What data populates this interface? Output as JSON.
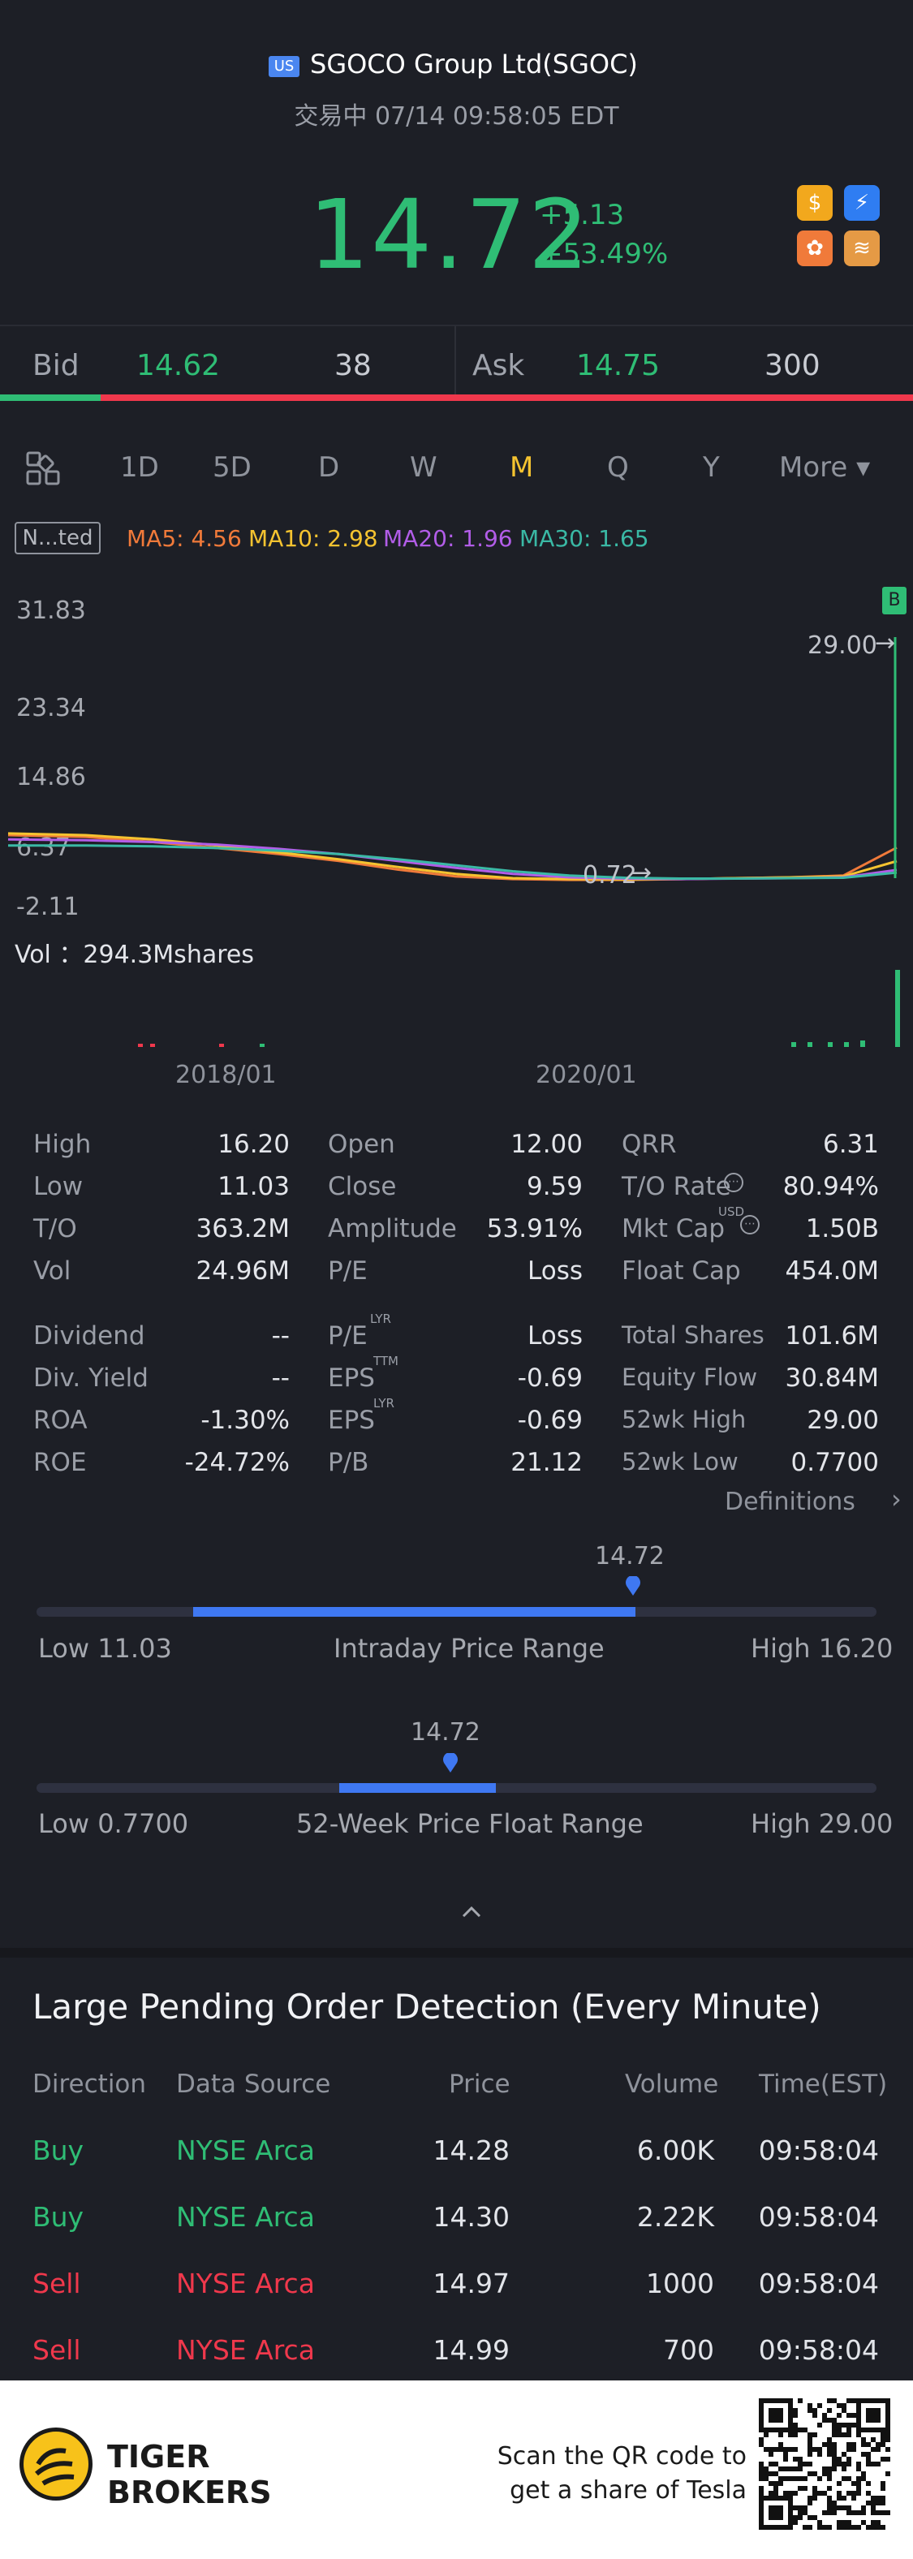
{
  "header": {
    "market_badge": "US",
    "title": "SGOCO Group Ltd(SGOC)",
    "status": "交易中 07/14 09:58:05 EDT",
    "price": "14.72",
    "change": "+5.13",
    "change_pct": "+53.49%",
    "app_icons": [
      "dollar-icon",
      "lightning-icon",
      "gift-icon",
      "layers-icon"
    ]
  },
  "bidask": {
    "bid_label": "Bid",
    "bid_price": "14.62",
    "bid_size": "38",
    "ask_label": "Ask",
    "ask_price": "14.75",
    "ask_size": "300"
  },
  "periods": {
    "items": [
      "1D",
      "5D",
      "D",
      "W",
      "M",
      "Q",
      "Y",
      "More ▾"
    ],
    "active": "M"
  },
  "chart": {
    "indicator_button": "N...ted",
    "ma": [
      "MA5: 4.56",
      "MA10: 2.98",
      "MA20: 1.96",
      "MA30: 1.65"
    ],
    "y_ticks": [
      "31.83",
      "23.34",
      "14.86",
      "6.37",
      "-2.11"
    ],
    "high_marker": "29.00",
    "low_marker": "0.72",
    "b_marker": "B",
    "volume_label": "Vol ：294.3Mshares",
    "x_ticks": [
      "2018/01",
      "2020/01"
    ],
    "colors": {
      "ma5": "#f07a3a",
      "ma10": "#f5c330",
      "ma20": "#b25de8",
      "ma30": "#3ab9a5"
    }
  },
  "chart_data": {
    "type": "line",
    "title": "",
    "ylim": [
      -2.11,
      31.83
    ],
    "series": [
      {
        "name": "MA5",
        "values": [
          6.0,
          5.8,
          5.2,
          4.5,
          3.8,
          3.0,
          2.0,
          1.2,
          0.9,
          0.8,
          0.8,
          0.9,
          1.0,
          1.1,
          1.3,
          4.56
        ]
      },
      {
        "name": "MA10",
        "values": [
          6.2,
          6.0,
          5.5,
          4.8,
          4.0,
          3.2,
          2.3,
          1.5,
          1.0,
          0.9,
          0.85,
          0.9,
          1.0,
          1.1,
          1.2,
          2.98
        ]
      },
      {
        "name": "MA20",
        "values": [
          5.5,
          5.4,
          5.2,
          4.9,
          4.4,
          3.8,
          3.0,
          2.2,
          1.5,
          1.1,
          0.95,
          0.9,
          0.95,
          1.0,
          1.1,
          1.96
        ]
      },
      {
        "name": "MA30",
        "values": [
          4.8,
          4.8,
          4.7,
          4.5,
          4.2,
          3.8,
          3.2,
          2.5,
          1.8,
          1.3,
          1.05,
          0.95,
          0.95,
          1.0,
          1.05,
          1.65
        ]
      }
    ]
  },
  "stats": {
    "rows": [
      [
        [
          "High",
          "16.20"
        ],
        [
          "Open",
          "12.00"
        ],
        [
          "QRR",
          "6.31"
        ]
      ],
      [
        [
          "Low",
          "11.03"
        ],
        [
          "Close",
          "9.59"
        ],
        [
          "T/O Rate",
          "80.94%"
        ]
      ],
      [
        [
          "T/O",
          "363.2M"
        ],
        [
          "Amplitude",
          "53.91%"
        ],
        [
          "Mkt Cap",
          "1.50B"
        ]
      ],
      [
        [
          "Vol",
          "24.96M"
        ],
        [
          "P/E",
          "Loss"
        ],
        [
          "Float Cap",
          "454.0M"
        ]
      ],
      [
        [
          "Dividend",
          "--"
        ],
        [
          "P/E",
          "Loss"
        ],
        [
          "Total Shares",
          "101.6M"
        ]
      ],
      [
        [
          "Div. Yield",
          "--"
        ],
        [
          "EPS",
          "-0.69"
        ],
        [
          "Equity Flow",
          "30.84M"
        ]
      ],
      [
        [
          "ROA",
          "-1.30%"
        ],
        [
          "EPS",
          "-0.69"
        ],
        [
          "52wk High",
          "29.00"
        ]
      ],
      [
        [
          "ROE",
          "-24.72%"
        ],
        [
          "P/B",
          "21.12"
        ],
        [
          "52wk Low",
          "0.7700"
        ]
      ]
    ],
    "sup_lyr": "LYR",
    "sup_ttm": "TTM",
    "sup_usd": "USD",
    "definitions": "Definitions"
  },
  "ranges": {
    "intraday": {
      "current": "14.72",
      "low": "Low 11.03",
      "label": "Intraday Price Range",
      "high": "High 16.20",
      "position": 0.75
    },
    "week52": {
      "current": "14.72",
      "low": "Low 0.7700",
      "label": "52-Week Price Float Range",
      "high": "High 29.00",
      "position": 0.49
    }
  },
  "pending": {
    "title": "Large Pending Order Detection (Every Minute)",
    "headers": [
      "Direction",
      "Data Source",
      "Price",
      "Volume",
      "Time(EST)"
    ],
    "rows": [
      [
        "Buy",
        "NYSE Arca",
        "14.28",
        "6.00K",
        "09:58:04"
      ],
      [
        "Buy",
        "NYSE Arca",
        "14.30",
        "2.22K",
        "09:58:04"
      ],
      [
        "Sell",
        "NYSE Arca",
        "14.97",
        "1000",
        "09:58:04"
      ],
      [
        "Sell",
        "NYSE Arca",
        "14.99",
        "700",
        "09:58:04"
      ]
    ]
  },
  "footer": {
    "brand_line1": "TIGER",
    "brand_line2": "BROKERS",
    "scan_line1": "Scan the QR code to",
    "scan_line2": "get a share of Tesla"
  }
}
